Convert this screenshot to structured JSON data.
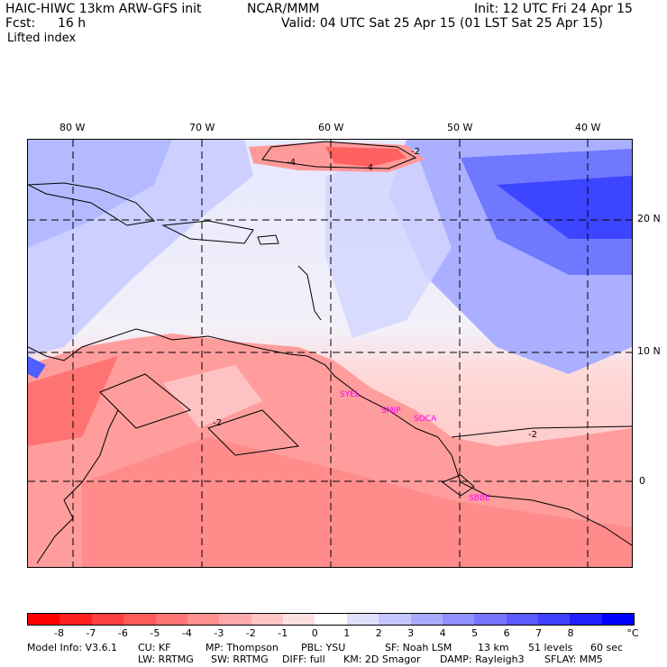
{
  "header": {
    "model": "HAIC-HIWC 13km ARW-GFS init",
    "center": "NCAR/MMM",
    "init": "Init: 12 UTC Fri 24 Apr 15",
    "fcst_label": "Fcst:",
    "fcst_value": "16 h",
    "valid": "Valid: 04 UTC Sat 25 Apr 15 (01 LST Sat 25 Apr 15)",
    "field": "Lifted index"
  },
  "axes": {
    "lon_labels": [
      "80 W",
      "70 W",
      "60 W",
      "50 W",
      "40 W"
    ],
    "lat_labels": [
      "20 N",
      "10 N",
      "0"
    ]
  },
  "stations": [
    "SYEL",
    "SMJP",
    "SOCA",
    "SBBE"
  ],
  "contour_labels": [
    "-4",
    "-4",
    "-2",
    "-2",
    "-2"
  ],
  "colorbar": {
    "colors": [
      "#ff0000",
      "#ff2020",
      "#ff4040",
      "#ff5a5a",
      "#ff7575",
      "#ff9090",
      "#ffaaaa",
      "#ffc5c5",
      "#ffe0e0",
      "#ffffff",
      "#e0e0ff",
      "#c5c5ff",
      "#aaaaff",
      "#9090ff",
      "#7575ff",
      "#5a5aff",
      "#4040ff",
      "#2020ff",
      "#0000ff"
    ],
    "labels": [
      "-8",
      "-7",
      "-6",
      "-5",
      "-4",
      "-3",
      "-2",
      "-1",
      "0",
      "1",
      "2",
      "3",
      "4",
      "5",
      "6",
      "7",
      "8"
    ],
    "unit": "°C"
  },
  "footer": {
    "line1": [
      "Model Info: V3.6.1",
      "CU: KF",
      "MP: Thompson",
      "PBL: YSU",
      "SF: Noah LSM",
      "13 km",
      "51 levels",
      "60 sec"
    ],
    "line2": [
      "LW: RRTMG",
      "SW: RRTMG",
      "DIFF: full",
      "KM: 2D Smagor",
      "DAMP: Rayleigh3",
      "SFLAY: MM5"
    ]
  }
}
